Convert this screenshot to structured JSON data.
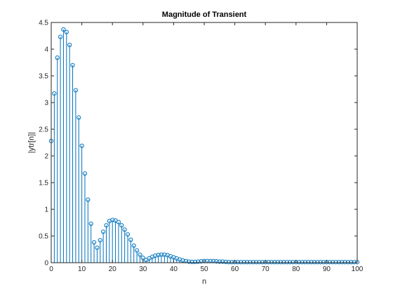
{
  "chart_data": {
    "type": "stem",
    "title": "Magnitude of Transient",
    "xlabel": "n",
    "ylabel": "|ytr[n]|",
    "xlim": [
      0,
      100
    ],
    "ylim": [
      0,
      4.5
    ],
    "xticks": [
      0,
      10,
      20,
      30,
      40,
      50,
      60,
      70,
      80,
      90,
      100
    ],
    "yticks": [
      0,
      0.5,
      1,
      1.5,
      2,
      2.5,
      3,
      3.5,
      4,
      4.5
    ],
    "grid": false,
    "legend": "none",
    "series": [
      {
        "color": "#0072BD",
        "marker": "circle",
        "x": [
          0,
          1,
          2,
          3,
          4,
          5,
          6,
          7,
          8,
          9,
          10,
          11,
          12,
          13,
          14,
          15,
          16,
          17,
          18,
          19,
          20,
          21,
          22,
          23,
          24,
          25,
          26,
          27,
          28,
          29,
          30,
          31,
          32,
          33,
          34,
          35,
          36,
          37,
          38,
          39,
          40,
          41,
          42,
          43,
          44,
          45,
          46,
          47,
          48,
          49,
          50,
          51,
          52,
          53,
          54,
          55,
          56,
          57,
          58,
          59,
          60,
          61,
          62,
          63,
          64,
          65,
          66,
          67,
          68,
          69,
          70,
          71,
          72,
          73,
          74,
          75,
          76,
          77,
          78,
          79,
          80,
          81,
          82,
          83,
          84,
          85,
          86,
          87,
          88,
          89,
          90,
          91,
          92,
          93,
          94,
          95,
          96,
          97,
          98,
          99,
          100
        ],
        "y": [
          2.28,
          3.17,
          3.84,
          4.23,
          4.37,
          4.32,
          4.08,
          3.7,
          3.23,
          2.72,
          2.19,
          1.67,
          1.18,
          0.73,
          0.38,
          0.28,
          0.42,
          0.58,
          0.7,
          0.78,
          0.8,
          0.79,
          0.76,
          0.7,
          0.62,
          0.53,
          0.43,
          0.32,
          0.23,
          0.15,
          0.09,
          0.05,
          0.08,
          0.11,
          0.13,
          0.145,
          0.15,
          0.15,
          0.14,
          0.12,
          0.1,
          0.08,
          0.06,
          0.04,
          0.03,
          0.02,
          0.015,
          0.015,
          0.02,
          0.025,
          0.03,
          0.03,
          0.03,
          0.03,
          0.025,
          0.02,
          0.02,
          0.015,
          0.01,
          0.01,
          0.01,
          0.01,
          0.01,
          0.01,
          0.01,
          0.01,
          0.01,
          0.01,
          0.01,
          0.01,
          0.01,
          0.01,
          0.01,
          0.01,
          0.01,
          0.01,
          0.01,
          0.01,
          0.01,
          0.01,
          0.01,
          0.01,
          0.01,
          0.01,
          0.01,
          0.01,
          0.01,
          0.01,
          0.01,
          0.01,
          0.01,
          0.01,
          0.01,
          0.01,
          0.01,
          0.01,
          0.01,
          0.01,
          0.01,
          0.01,
          0.01
        ]
      }
    ]
  }
}
